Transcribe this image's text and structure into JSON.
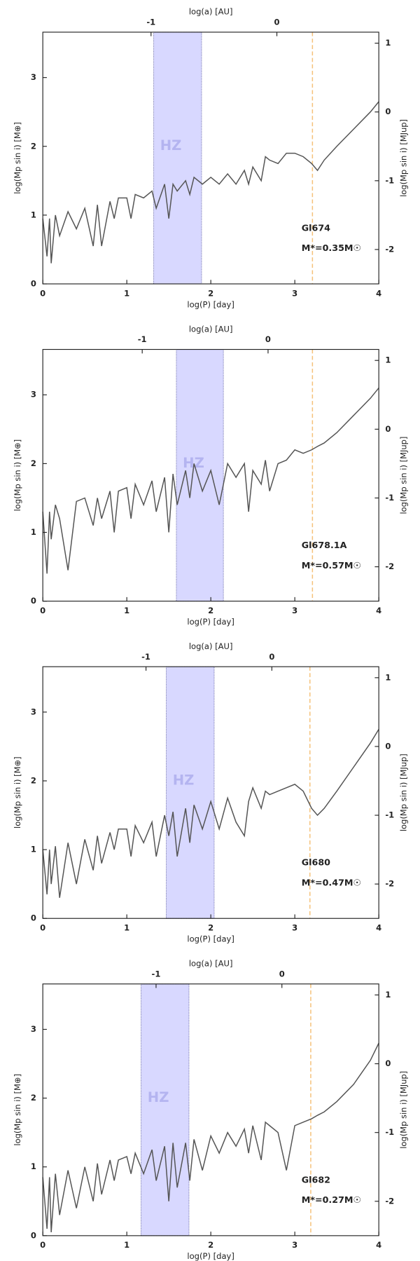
{
  "chart_data": [
    {
      "type": "line",
      "x_label": "log(P) [day]",
      "x2_label": "log(a) [AU]",
      "y_label": "log(Mp sin i) [M⊕]",
      "y2_label": "log(Mp sin i) [MJup]",
      "xlim": [
        0,
        4
      ],
      "xticks": [
        0,
        1,
        2,
        3,
        4
      ],
      "x2lim": [
        -1.86,
        0.81
      ],
      "x2ticks": [
        -1,
        0
      ],
      "ylim": [
        0,
        3.66
      ],
      "yticks": [
        0,
        1,
        2,
        3
      ],
      "y2lim": [
        -2.5,
        1.16
      ],
      "y2ticks": [
        -2,
        -1,
        0,
        1
      ],
      "bands": [
        {
          "label": "HZ",
          "x": [
            1.32,
            1.89
          ],
          "color": "#d8d8ff"
        }
      ],
      "vlines": [
        {
          "x": 3.21,
          "color": "#f5c27a"
        }
      ],
      "annotations": [
        "Gl674",
        "M*=0.35M☉"
      ],
      "series": [
        {
          "color": "#555555",
          "x": [
            0,
            0.05,
            0.08,
            0.1,
            0.15,
            0.2,
            0.3,
            0.4,
            0.5,
            0.6,
            0.65,
            0.7,
            0.8,
            0.85,
            0.9,
            1.0,
            1.05,
            1.1,
            1.2,
            1.3,
            1.35,
            1.45,
            1.5,
            1.55,
            1.6,
            1.7,
            1.75,
            1.8,
            1.9,
            2.0,
            2.1,
            2.2,
            2.3,
            2.4,
            2.45,
            2.5,
            2.6,
            2.65,
            2.7,
            2.8,
            2.9,
            3.0,
            3.1,
            3.2,
            3.27,
            3.35,
            3.5,
            3.7,
            3.9,
            4.0
          ],
          "values": [
            0.95,
            0.4,
            0.95,
            0.3,
            1.0,
            0.7,
            1.05,
            0.8,
            1.1,
            0.55,
            1.15,
            0.55,
            1.2,
            0.95,
            1.25,
            1.25,
            0.95,
            1.3,
            1.25,
            1.35,
            1.1,
            1.45,
            0.95,
            1.45,
            1.35,
            1.5,
            1.3,
            1.55,
            1.45,
            1.55,
            1.45,
            1.6,
            1.45,
            1.65,
            1.45,
            1.7,
            1.5,
            1.85,
            1.8,
            1.75,
            1.9,
            1.9,
            1.85,
            1.75,
            1.65,
            1.8,
            2.0,
            2.25,
            2.5,
            2.65
          ]
        }
      ]
    },
    {
      "type": "line",
      "x_label": "log(P) [day]",
      "x2_label": "log(a) [AU]",
      "y_label": "log(Mp sin i) [M⊕]",
      "y2_label": "log(Mp sin i) [MJup]",
      "xlim": [
        0,
        4
      ],
      "xticks": [
        0,
        1,
        2,
        3,
        4
      ],
      "x2lim": [
        -1.79,
        0.88
      ],
      "x2ticks": [
        -1,
        0
      ],
      "ylim": [
        0,
        3.66
      ],
      "yticks": [
        0,
        1,
        2,
        3
      ],
      "y2lim": [
        -2.5,
        1.16
      ],
      "y2ticks": [
        -2,
        -1,
        0,
        1
      ],
      "bands": [
        {
          "label": "HZ",
          "x": [
            1.59,
            2.15
          ],
          "color": "#d8d8ff"
        }
      ],
      "vlines": [
        {
          "x": 3.21,
          "color": "#f5c27a"
        }
      ],
      "annotations": [
        "Gl678.1A",
        "M*=0.57M☉"
      ],
      "series": [
        {
          "color": "#555555",
          "x": [
            0,
            0.05,
            0.08,
            0.1,
            0.15,
            0.2,
            0.3,
            0.4,
            0.5,
            0.6,
            0.65,
            0.7,
            0.8,
            0.85,
            0.9,
            1.0,
            1.05,
            1.1,
            1.2,
            1.3,
            1.35,
            1.45,
            1.5,
            1.55,
            1.6,
            1.7,
            1.75,
            1.8,
            1.9,
            2.0,
            2.1,
            2.2,
            2.3,
            2.4,
            2.45,
            2.5,
            2.6,
            2.65,
            2.7,
            2.8,
            2.9,
            3.0,
            3.1,
            3.2,
            3.27,
            3.35,
            3.5,
            3.7,
            3.9,
            4.0
          ],
          "values": [
            1.3,
            0.4,
            1.3,
            0.9,
            1.4,
            1.2,
            0.45,
            1.45,
            1.5,
            1.1,
            1.5,
            1.2,
            1.6,
            1.0,
            1.6,
            1.65,
            1.2,
            1.7,
            1.4,
            1.75,
            1.3,
            1.8,
            1.0,
            1.85,
            1.4,
            1.9,
            1.5,
            2.0,
            1.6,
            1.9,
            1.4,
            2.0,
            1.8,
            2.0,
            1.3,
            1.9,
            1.7,
            2.05,
            1.6,
            2.0,
            2.05,
            2.2,
            2.15,
            2.2,
            2.25,
            2.3,
            2.45,
            2.7,
            2.95,
            3.1
          ]
        }
      ]
    },
    {
      "type": "line",
      "x_label": "log(P) [day]",
      "x2_label": "log(a) [AU]",
      "y_label": "log(Mp sin i) [M⊕]",
      "y2_label": "log(Mp sin i) [MJup]",
      "xlim": [
        0,
        4
      ],
      "xticks": [
        0,
        1,
        2,
        3,
        4
      ],
      "x2lim": [
        -1.82,
        0.85
      ],
      "x2ticks": [
        -1,
        0
      ],
      "ylim": [
        0,
        3.66
      ],
      "yticks": [
        0,
        1,
        2,
        3
      ],
      "y2lim": [
        -2.5,
        1.16
      ],
      "y2ticks": [
        -2,
        -1,
        0,
        1
      ],
      "bands": [
        {
          "label": "HZ",
          "x": [
            1.47,
            2.04
          ],
          "color": "#d8d8ff"
        }
      ],
      "vlines": [
        {
          "x": 3.18,
          "color": "#f5c27a"
        }
      ],
      "annotations": [
        "Gl680",
        "M*=0.47M☉"
      ],
      "series": [
        {
          "color": "#555555",
          "x": [
            0,
            0.05,
            0.08,
            0.1,
            0.15,
            0.2,
            0.3,
            0.4,
            0.5,
            0.6,
            0.65,
            0.7,
            0.8,
            0.85,
            0.9,
            1.0,
            1.05,
            1.1,
            1.2,
            1.3,
            1.35,
            1.45,
            1.5,
            1.55,
            1.6,
            1.7,
            1.75,
            1.8,
            1.9,
            2.0,
            2.1,
            2.2,
            2.3,
            2.4,
            2.45,
            2.5,
            2.6,
            2.65,
            2.7,
            2.8,
            2.9,
            3.0,
            3.1,
            3.2,
            3.27,
            3.35,
            3.5,
            3.7,
            3.9,
            4.0
          ],
          "values": [
            1.0,
            0.35,
            1.0,
            0.5,
            1.05,
            0.3,
            1.1,
            0.5,
            1.15,
            0.7,
            1.2,
            0.8,
            1.25,
            1.0,
            1.3,
            1.3,
            0.9,
            1.35,
            1.1,
            1.4,
            0.9,
            1.5,
            1.2,
            1.55,
            0.9,
            1.6,
            1.1,
            1.65,
            1.3,
            1.7,
            1.3,
            1.75,
            1.4,
            1.2,
            1.7,
            1.9,
            1.6,
            1.85,
            1.8,
            1.85,
            1.9,
            1.95,
            1.85,
            1.6,
            1.5,
            1.6,
            1.85,
            2.2,
            2.55,
            2.75
          ]
        }
      ]
    },
    {
      "type": "line",
      "x_label": "log(P) [day]",
      "x2_label": "log(a) [AU]",
      "y_label": "log(Mp sin i) [M⊕]",
      "y2_label": "log(Mp sin i) [MJup]",
      "xlim": [
        0,
        4
      ],
      "xticks": [
        0,
        1,
        2,
        3,
        4
      ],
      "x2lim": [
        -1.9,
        0.77
      ],
      "x2ticks": [
        -1,
        0
      ],
      "ylim": [
        0,
        3.66
      ],
      "yticks": [
        0,
        1,
        2,
        3
      ],
      "y2lim": [
        -2.5,
        1.16
      ],
      "y2ticks": [
        -2,
        -1,
        0,
        1
      ],
      "bands": [
        {
          "label": "HZ",
          "x": [
            1.17,
            1.74
          ],
          "color": "#d8d8ff"
        }
      ],
      "vlines": [
        {
          "x": 3.19,
          "color": "#f5c27a"
        }
      ],
      "annotations": [
        "Gl682",
        "M*=0.27M☉"
      ],
      "series": [
        {
          "color": "#555555",
          "x": [
            0,
            0.05,
            0.08,
            0.1,
            0.15,
            0.2,
            0.3,
            0.4,
            0.5,
            0.6,
            0.65,
            0.7,
            0.8,
            0.85,
            0.9,
            1.0,
            1.05,
            1.1,
            1.2,
            1.3,
            1.35,
            1.45,
            1.5,
            1.55,
            1.6,
            1.7,
            1.75,
            1.8,
            1.9,
            2.0,
            2.1,
            2.2,
            2.3,
            2.4,
            2.45,
            2.5,
            2.6,
            2.65,
            2.7,
            2.8,
            2.9,
            3.0,
            3.1,
            3.2,
            3.27,
            3.35,
            3.5,
            3.7,
            3.9,
            4.0
          ],
          "values": [
            0.85,
            0.1,
            0.85,
            0.05,
            0.9,
            0.3,
            0.95,
            0.4,
            1.0,
            0.5,
            1.05,
            0.6,
            1.1,
            0.8,
            1.1,
            1.15,
            0.9,
            1.2,
            0.9,
            1.25,
            0.8,
            1.3,
            0.5,
            1.35,
            0.7,
            1.35,
            0.8,
            1.4,
            0.95,
            1.45,
            1.2,
            1.5,
            1.3,
            1.55,
            1.2,
            1.6,
            1.1,
            1.65,
            1.6,
            1.5,
            0.95,
            1.6,
            1.65,
            1.7,
            1.75,
            1.8,
            1.95,
            2.2,
            2.55,
            2.8
          ]
        }
      ]
    }
  ]
}
